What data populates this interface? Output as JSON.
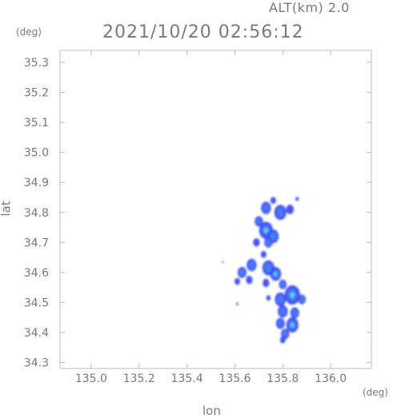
{
  "header": {
    "altitude_label": "ALT(km) 2.0",
    "timestamp": "2021/10/20 02:56:12"
  },
  "units": {
    "y_unit": "(deg)",
    "x_unit": "(deg)"
  },
  "chart_data": {
    "type": "heatmap",
    "xlabel": "lon",
    "ylabel": "lat",
    "xlim": [
      134.87,
      136.17
    ],
    "ylim": [
      34.28,
      35.34
    ],
    "x_ticks": [
      "135.0",
      "135.2",
      "135.4",
      "135.6",
      "135.8",
      "136.0"
    ],
    "y_ticks": [
      "34.3",
      "34.4",
      "34.5",
      "34.6",
      "34.7",
      "34.8",
      "34.9",
      "35.0",
      "35.1",
      "35.2",
      "35.3"
    ],
    "grid": false,
    "colors": {
      "low": "#3a4cf0",
      "mid": "#4a7cf8",
      "high": "#55d6f0",
      "frame": "#bdbdbd"
    },
    "cells": [
      {
        "lon": 135.73,
        "lat": 34.815,
        "r": 0.018,
        "level": 1
      },
      {
        "lon": 135.76,
        "lat": 34.84,
        "r": 0.01,
        "level": 0
      },
      {
        "lon": 135.79,
        "lat": 34.8,
        "r": 0.022,
        "level": 1
      },
      {
        "lon": 135.83,
        "lat": 34.81,
        "r": 0.014,
        "level": 0
      },
      {
        "lon": 135.86,
        "lat": 34.845,
        "r": 0.006,
        "level": 0
      },
      {
        "lon": 135.7,
        "lat": 34.77,
        "r": 0.015,
        "level": 1
      },
      {
        "lon": 135.73,
        "lat": 34.74,
        "r": 0.025,
        "level": 2
      },
      {
        "lon": 135.76,
        "lat": 34.72,
        "r": 0.02,
        "level": 1
      },
      {
        "lon": 135.69,
        "lat": 34.7,
        "r": 0.012,
        "level": 0
      },
      {
        "lon": 135.74,
        "lat": 34.7,
        "r": 0.015,
        "level": 1
      },
      {
        "lon": 135.72,
        "lat": 34.66,
        "r": 0.01,
        "level": 0
      },
      {
        "lon": 135.67,
        "lat": 34.625,
        "r": 0.018,
        "level": 1
      },
      {
        "lon": 135.63,
        "lat": 34.6,
        "r": 0.016,
        "level": 1
      },
      {
        "lon": 135.61,
        "lat": 34.57,
        "r": 0.01,
        "level": 0
      },
      {
        "lon": 135.66,
        "lat": 34.575,
        "r": 0.012,
        "level": 0
      },
      {
        "lon": 135.74,
        "lat": 34.615,
        "r": 0.022,
        "level": 1
      },
      {
        "lon": 135.77,
        "lat": 34.595,
        "r": 0.02,
        "level": 2
      },
      {
        "lon": 135.73,
        "lat": 34.565,
        "r": 0.012,
        "level": 0
      },
      {
        "lon": 135.8,
        "lat": 34.56,
        "r": 0.014,
        "level": 1
      },
      {
        "lon": 135.55,
        "lat": 34.635,
        "r": 0.003,
        "level": 0
      },
      {
        "lon": 135.61,
        "lat": 34.495,
        "r": 0.004,
        "level": 0
      },
      {
        "lon": 135.74,
        "lat": 34.515,
        "r": 0.008,
        "level": 0
      },
      {
        "lon": 135.79,
        "lat": 34.51,
        "r": 0.02,
        "level": 1
      },
      {
        "lon": 135.84,
        "lat": 34.525,
        "r": 0.028,
        "level": 2
      },
      {
        "lon": 135.88,
        "lat": 34.51,
        "r": 0.014,
        "level": 1
      },
      {
        "lon": 135.8,
        "lat": 34.47,
        "r": 0.018,
        "level": 1
      },
      {
        "lon": 135.85,
        "lat": 34.465,
        "r": 0.016,
        "level": 1
      },
      {
        "lon": 135.79,
        "lat": 34.43,
        "r": 0.016,
        "level": 1
      },
      {
        "lon": 135.84,
        "lat": 34.425,
        "r": 0.022,
        "level": 2
      },
      {
        "lon": 135.81,
        "lat": 34.395,
        "r": 0.015,
        "level": 1
      },
      {
        "lon": 135.8,
        "lat": 34.375,
        "r": 0.01,
        "level": 0
      }
    ]
  }
}
